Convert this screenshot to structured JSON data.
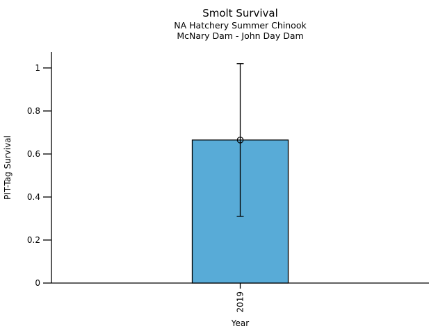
{
  "figure": {
    "background": "#ffffff",
    "text_color": "#000000"
  },
  "chart_data": {
    "type": "bar",
    "title": "Smolt Survival",
    "subtitle_lines": [
      "NA Hatchery Summer Chinook",
      "McNary Dam - John Day Dam"
    ],
    "xlabel": "Year",
    "ylabel": "PIT-Tag Survival",
    "categories": [
      "2019"
    ],
    "values": [
      0.665
    ],
    "error_bars": [
      {
        "low": 0.31,
        "high": 1.02
      }
    ],
    "point_estimates": [
      0.665
    ],
    "ylim": [
      0,
      1.074
    ],
    "yticks": [
      0,
      0.2,
      0.4,
      0.6,
      0.8,
      1
    ],
    "ytick_labels": [
      "0",
      "0.2",
      "0.4",
      "0.6",
      "0.8",
      "1"
    ],
    "x_tick_label_rotation": 90,
    "grid": false,
    "legend": null,
    "bar_color": "#58ABD7",
    "bar_edge_color": "#000000",
    "axis_color": "#000000"
  }
}
